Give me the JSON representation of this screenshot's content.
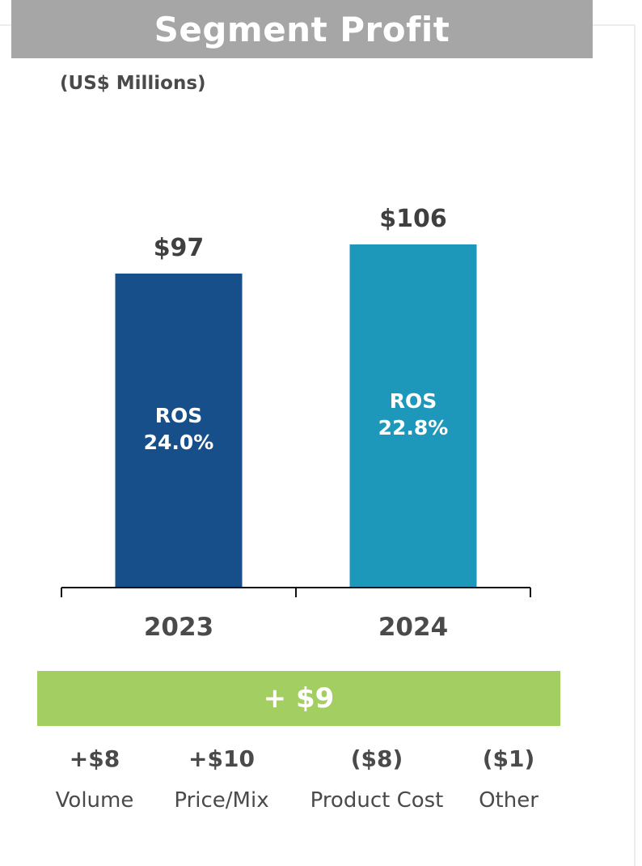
{
  "title": "Segment Profit",
  "subtitle": "(US$ Millions)",
  "chart_data": {
    "type": "bar",
    "categories": [
      "2023",
      "2024"
    ],
    "values": [
      97,
      106
    ],
    "value_labels": [
      "$97",
      "$106"
    ],
    "inner_labels": [
      {
        "line1": "ROS",
        "line2": "24.0%"
      },
      {
        "line1": "ROS",
        "line2": "22.8%"
      }
    ],
    "colors": [
      "#174f8b",
      "#1e98ba"
    ],
    "ylim": [
      0,
      120
    ],
    "grid": false,
    "xlabel": "",
    "ylabel": ""
  },
  "change": {
    "label": "+ $9",
    "color": "#a3cf62"
  },
  "drivers": [
    {
      "value": "+$8",
      "label": "Volume"
    },
    {
      "value": "+$10",
      "label": "Price/Mix"
    },
    {
      "value": "($8)",
      "label": "Product Cost"
    },
    {
      "value": "($1)",
      "label": "Other"
    }
  ]
}
